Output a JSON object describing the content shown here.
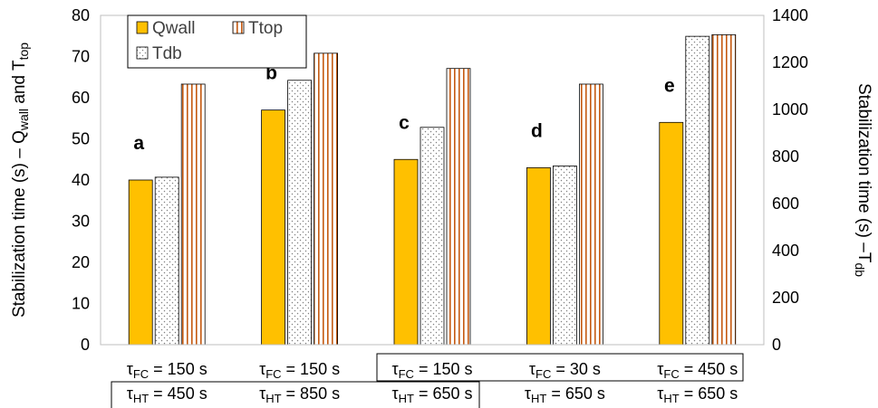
{
  "chart_data": {
    "type": "bar",
    "left_axis": {
      "label_parts": [
        {
          "text": "Stabilization time (s) – Q"
        },
        {
          "text": "wall",
          "sub": true
        },
        {
          "text": " and T"
        },
        {
          "text": "top",
          "sub": true
        }
      ],
      "range": [
        0,
        80
      ],
      "ticks": [
        "0",
        "10",
        "20",
        "30",
        "40",
        "50",
        "60",
        "70",
        "80"
      ]
    },
    "right_axis": {
      "label_parts": [
        {
          "text": "Stabilization time (s) –T"
        },
        {
          "text": "db",
          "sub": true
        }
      ],
      "range": [
        0,
        1400
      ],
      "ticks": [
        "0",
        "200",
        "400",
        "600",
        "800",
        "1000",
        "1200",
        "1400"
      ]
    },
    "legend": {
      "placement": "top-left",
      "entries": [
        {
          "name": "Qwall",
          "pattern": "solid",
          "color": "#FFC000"
        },
        {
          "name": "Ttop",
          "pattern": "vertical-stripes",
          "color": "#C55A11"
        },
        {
          "name": "Tdb",
          "pattern": "dots",
          "color": "#808080"
        }
      ]
    },
    "series": [
      {
        "name": "Qwall",
        "axis": "left",
        "values": [
          40,
          57,
          45,
          43,
          54
        ]
      },
      {
        "name": "Tdb",
        "axis": "right",
        "values": [
          712,
          1124,
          924,
          760,
          1311
        ]
      },
      {
        "name": "Ttop",
        "axis": "left",
        "values": [
          63.3,
          70.8,
          67.1,
          63.3,
          75.3
        ]
      }
    ],
    "groups": [
      {
        "label": "a",
        "tfc": "150 s",
        "tht": "450 s"
      },
      {
        "label": "b",
        "tfc": "150 s",
        "tht": "850 s"
      },
      {
        "label": "c",
        "tfc": "150 s",
        "tht": "650 s"
      },
      {
        "label": "d",
        "tfc": "30 s",
        "tht": "650 s"
      },
      {
        "label": "e",
        "tfc": "450 s",
        "tht": "650 s"
      }
    ],
    "tau_symbol": "τ",
    "fc_sub": "FC",
    "ht_sub": "HT",
    "equals": " = ",
    "grid": false
  }
}
